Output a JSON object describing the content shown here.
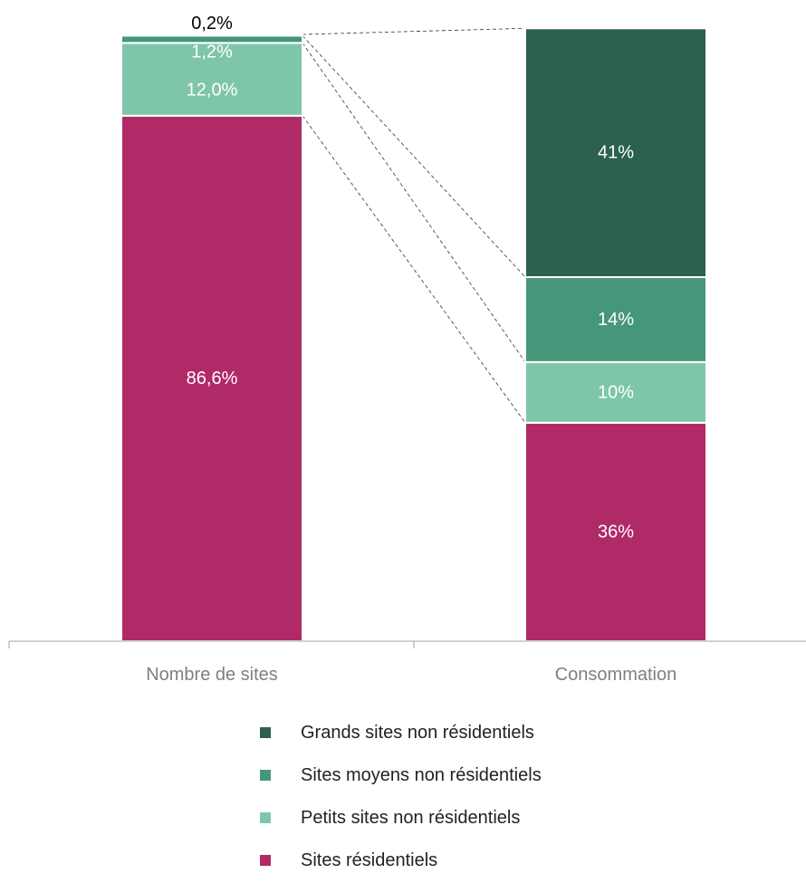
{
  "chart_data": {
    "type": "bar",
    "stacked": true,
    "categories": [
      "Nombre de sites",
      "Consommation"
    ],
    "ylim": [
      0,
      100
    ],
    "grid": false,
    "legend_position": "bottom",
    "series": [
      {
        "name": "Sites résidentiels",
        "color": "#b02a68",
        "values": [
          86.6,
          36
        ],
        "labels": [
          "86,6%",
          "36%"
        ],
        "label_color": "#ffffff"
      },
      {
        "name": "Petits sites non résidentiels",
        "color": "#7fc6a8",
        "values": [
          12.0,
          10
        ],
        "labels": [
          "12,0%",
          "10%"
        ],
        "label_color": "#ffffff"
      },
      {
        "name": "Sites moyens non résidentiels",
        "color": "#46977a",
        "values": [
          1.2,
          14
        ],
        "labels": [
          "1,2%",
          "14%"
        ],
        "label_color": "#ffffff"
      },
      {
        "name": "Grands sites non résidentiels",
        "color": "#2c614e",
        "values": [
          0.2,
          41
        ],
        "labels": [
          "0,2%",
          "41%"
        ],
        "label_color": "#ffffff",
        "first_label_color": "#000000"
      }
    ],
    "legend_order": [
      3,
      2,
      1,
      0
    ]
  }
}
